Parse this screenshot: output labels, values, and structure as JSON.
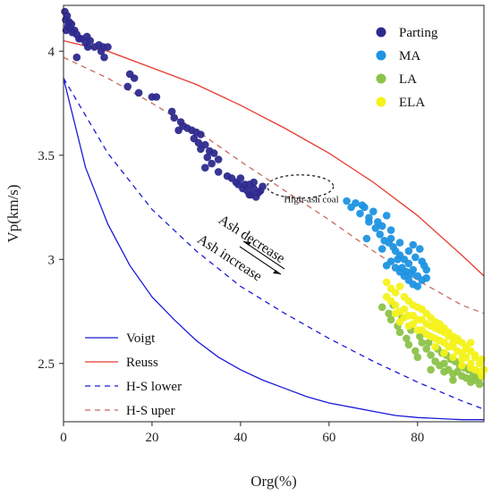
{
  "chart_data": {
    "type": "scatter",
    "title": "",
    "xlabel": "Org(%)",
    "ylabel": "Vp(km/s)",
    "xlim": [
      0,
      95
    ],
    "ylim": [
      2.22,
      4.22
    ],
    "xticks": [
      0,
      20,
      40,
      60,
      80
    ],
    "yticks": [
      2.5,
      3,
      3.5,
      4
    ],
    "ytick_labels": [
      "2.5",
      "3",
      "3.5",
      "4"
    ],
    "grid": false,
    "legend_points_placement": "top-right",
    "legend_lines_placement": "bottom-left",
    "series": [
      {
        "name": "Parting",
        "kind": "points",
        "color": "#2d2a8e",
        "points": [
          [
            0.3,
            4.19
          ],
          [
            0.5,
            4.15
          ],
          [
            0.8,
            4.17
          ],
          [
            1,
            4.12
          ],
          [
            1.3,
            4.14
          ],
          [
            0.6,
            4.1
          ],
          [
            1.5,
            4.11
          ],
          [
            2,
            4.09
          ],
          [
            3,
            4.08
          ],
          [
            3.5,
            4.06
          ],
          [
            4,
            4.06
          ],
          [
            5,
            4.04
          ],
          [
            5.5,
            4.02
          ],
          [
            7,
            4.02
          ],
          [
            8,
            4.03
          ],
          [
            9,
            4.02
          ],
          [
            8.5,
            4.0
          ],
          [
            9.2,
            3.97
          ],
          [
            3,
            3.97
          ],
          [
            5.3,
            4.07
          ],
          [
            6,
            4.05
          ],
          [
            1.8,
            4.13
          ],
          [
            2.5,
            4.1
          ],
          [
            10,
            4.02
          ],
          [
            15,
            3.89
          ],
          [
            16,
            3.87
          ],
          [
            14.5,
            3.83
          ],
          [
            17,
            3.8
          ],
          [
            20,
            3.78
          ],
          [
            21,
            3.78
          ],
          [
            24.5,
            3.71
          ],
          [
            25,
            3.68
          ],
          [
            26.5,
            3.66
          ],
          [
            27,
            3.64
          ],
          [
            28,
            3.63
          ],
          [
            26,
            3.62
          ],
          [
            29,
            3.62
          ],
          [
            30,
            3.61
          ],
          [
            31,
            3.6
          ],
          [
            29.5,
            3.58
          ],
          [
            30.5,
            3.56
          ],
          [
            32,
            3.55
          ],
          [
            31,
            3.53
          ],
          [
            33,
            3.52
          ],
          [
            34,
            3.51
          ],
          [
            32.5,
            3.49
          ],
          [
            35,
            3.48
          ],
          [
            33.5,
            3.46
          ],
          [
            32,
            3.44
          ],
          [
            35,
            3.42
          ],
          [
            37,
            3.4
          ],
          [
            38,
            3.39
          ],
          [
            39,
            3.37
          ],
          [
            40,
            3.39
          ],
          [
            41,
            3.36
          ],
          [
            40.5,
            3.34
          ],
          [
            42,
            3.36
          ],
          [
            43,
            3.34
          ],
          [
            44,
            3.32
          ],
          [
            45,
            3.35
          ],
          [
            43.5,
            3.3
          ],
          [
            42.5,
            3.31
          ],
          [
            41.5,
            3.33
          ],
          [
            39.5,
            3.36
          ],
          [
            44.5,
            3.33
          ],
          [
            43,
            3.37
          ],
          [
            42,
            3.31
          ]
        ]
      },
      {
        "name": "MA",
        "kind": "points",
        "color": "#1d93e2",
        "points": [
          [
            64,
            3.28
          ],
          [
            65,
            3.25
          ],
          [
            66,
            3.27
          ],
          [
            67,
            3.22
          ],
          [
            68,
            3.25
          ],
          [
            69,
            3.2
          ],
          [
            70,
            3.23
          ],
          [
            71,
            3.18
          ],
          [
            72,
            3.16
          ],
          [
            73,
            3.21
          ],
          [
            74,
            3.14
          ],
          [
            71.5,
            3.12
          ],
          [
            72.5,
            3.09
          ],
          [
            73.5,
            3.08
          ],
          [
            74.5,
            3.06
          ],
          [
            75,
            3.04
          ],
          [
            76,
            3.02
          ],
          [
            77,
            3.0
          ],
          [
            78,
            2.98
          ],
          [
            76.5,
            2.96
          ],
          [
            77.5,
            2.94
          ],
          [
            78.5,
            2.93
          ],
          [
            79,
            2.95
          ],
          [
            80,
            2.92
          ],
          [
            81,
            2.9
          ],
          [
            82,
            2.91
          ],
          [
            81.5,
            2.97
          ],
          [
            79.5,
            3.01
          ],
          [
            75.5,
            3.0
          ],
          [
            74,
            2.99
          ],
          [
            73,
            2.97
          ],
          [
            75,
            2.96
          ],
          [
            76,
            2.94
          ],
          [
            77,
            2.92
          ],
          [
            78,
            2.9
          ],
          [
            79,
            2.88
          ],
          [
            80,
            2.87
          ],
          [
            70.5,
            3.15
          ],
          [
            72,
            3.05
          ],
          [
            69,
            3.18
          ],
          [
            67.5,
            3.26
          ],
          [
            68.5,
            3.1
          ],
          [
            80.5,
            3.05
          ],
          [
            79,
            3.07
          ],
          [
            82,
            2.95
          ],
          [
            81,
            2.99
          ],
          [
            74,
            3.1
          ],
          [
            76,
            3.08
          ],
          [
            78,
            3.04
          ]
        ]
      },
      {
        "name": "LA",
        "kind": "points",
        "color": "#8bc34a",
        "points": [
          [
            72,
            2.77
          ],
          [
            73.5,
            2.74
          ],
          [
            74,
            2.71
          ],
          [
            75.5,
            2.68
          ],
          [
            76,
            2.65
          ],
          [
            77.5,
            2.62
          ],
          [
            78,
            2.59
          ],
          [
            79.5,
            2.56
          ],
          [
            80,
            2.53
          ],
          [
            81,
            2.6
          ],
          [
            82,
            2.57
          ],
          [
            83,
            2.54
          ],
          [
            84,
            2.51
          ],
          [
            85,
            2.49
          ],
          [
            86,
            2.5
          ],
          [
            87,
            2.47
          ],
          [
            88,
            2.45
          ],
          [
            89,
            2.46
          ],
          [
            90,
            2.44
          ],
          [
            91,
            2.43
          ],
          [
            92,
            2.41
          ],
          [
            93,
            2.42
          ],
          [
            94,
            2.4
          ],
          [
            85.5,
            2.55
          ],
          [
            87.5,
            2.52
          ],
          [
            89.5,
            2.49
          ],
          [
            91.5,
            2.47
          ],
          [
            93,
            2.45
          ],
          [
            76.5,
            2.72
          ],
          [
            78.5,
            2.66
          ],
          [
            80.5,
            2.63
          ],
          [
            82.5,
            2.6
          ],
          [
            84.5,
            2.57
          ],
          [
            86.5,
            2.54
          ],
          [
            88.5,
            2.51
          ],
          [
            90.5,
            2.48
          ],
          [
            92.5,
            2.44
          ],
          [
            94,
            2.43
          ],
          [
            74.5,
            2.78
          ],
          [
            83,
            2.47
          ],
          [
            86,
            2.46
          ],
          [
            88,
            2.42
          ]
        ]
      },
      {
        "name": "ELA",
        "kind": "points",
        "color": "#f4f21a",
        "points": [
          [
            73,
            2.89
          ],
          [
            74,
            2.86
          ],
          [
            75,
            2.84
          ],
          [
            76,
            2.87
          ],
          [
            77,
            2.82
          ],
          [
            78,
            2.8
          ],
          [
            79,
            2.78
          ],
          [
            80,
            2.77
          ],
          [
            81,
            2.76
          ],
          [
            82,
            2.74
          ],
          [
            83,
            2.72
          ],
          [
            84,
            2.7
          ],
          [
            85,
            2.69
          ],
          [
            86,
            2.67
          ],
          [
            87,
            2.65
          ],
          [
            88,
            2.63
          ],
          [
            89,
            2.62
          ],
          [
            90,
            2.6
          ],
          [
            91,
            2.58
          ],
          [
            92,
            2.56
          ],
          [
            93,
            2.54
          ],
          [
            94,
            2.5
          ],
          [
            95,
            2.47
          ],
          [
            94.5,
            2.44
          ],
          [
            75,
            2.78
          ],
          [
            77,
            2.76
          ],
          [
            79,
            2.73
          ],
          [
            81,
            2.71
          ],
          [
            83,
            2.68
          ],
          [
            85,
            2.66
          ],
          [
            87,
            2.63
          ],
          [
            89,
            2.61
          ],
          [
            91,
            2.57
          ],
          [
            93,
            2.53
          ],
          [
            76,
            2.7
          ],
          [
            78,
            2.68
          ],
          [
            80,
            2.66
          ],
          [
            82,
            2.64
          ],
          [
            84,
            2.62
          ],
          [
            86,
            2.6
          ],
          [
            88,
            2.58
          ],
          [
            90,
            2.55
          ],
          [
            92,
            2.5
          ],
          [
            94,
            2.46
          ],
          [
            74,
            2.8
          ],
          [
            76,
            2.75
          ],
          [
            78,
            2.73
          ],
          [
            80,
            2.71
          ],
          [
            82,
            2.69
          ],
          [
            84,
            2.67
          ],
          [
            86,
            2.65
          ],
          [
            88,
            2.6
          ],
          [
            90,
            2.52
          ],
          [
            92,
            2.48
          ],
          [
            84,
            2.58
          ],
          [
            86,
            2.55
          ],
          [
            88,
            2.53
          ],
          [
            90,
            2.49
          ],
          [
            92,
            2.6
          ],
          [
            89,
            2.56
          ],
          [
            87,
            2.58
          ],
          [
            85,
            2.61
          ],
          [
            83,
            2.63
          ],
          [
            81,
            2.66
          ],
          [
            79,
            2.69
          ],
          [
            77,
            2.72
          ],
          [
            75,
            2.74
          ],
          [
            73,
            2.82
          ],
          [
            91,
            2.53
          ],
          [
            93,
            2.47
          ],
          [
            94.5,
            2.52
          ]
        ]
      },
      {
        "name": "Voigt",
        "kind": "line",
        "color": "#1a1ad8",
        "style": "solid",
        "points": [
          [
            0,
            3.87
          ],
          [
            5,
            3.44
          ],
          [
            10,
            3.17
          ],
          [
            15,
            2.97
          ],
          [
            20,
            2.82
          ],
          [
            25,
            2.71
          ],
          [
            30,
            2.61
          ],
          [
            35,
            2.53
          ],
          [
            40,
            2.47
          ],
          [
            45,
            2.42
          ],
          [
            50,
            2.38
          ],
          [
            55,
            2.34
          ],
          [
            60,
            2.31
          ],
          [
            65,
            2.29
          ],
          [
            70,
            2.27
          ],
          [
            75,
            2.25
          ],
          [
            80,
            2.24
          ],
          [
            85,
            2.235
          ],
          [
            90,
            2.23
          ],
          [
            95,
            2.23
          ]
        ]
      },
      {
        "name": "Reuss",
        "kind": "line",
        "color": "#e83a2f",
        "style": "solid",
        "points": [
          [
            0,
            4.05
          ],
          [
            10,
            4.0
          ],
          [
            20,
            3.92
          ],
          [
            30,
            3.84
          ],
          [
            40,
            3.74
          ],
          [
            50,
            3.63
          ],
          [
            60,
            3.51
          ],
          [
            70,
            3.37
          ],
          [
            80,
            3.21
          ],
          [
            90,
            3.02
          ],
          [
            95,
            2.92
          ]
        ]
      },
      {
        "name": "H-S lower",
        "kind": "line",
        "color": "#1a1ad8",
        "style": "dashed",
        "points": [
          [
            0,
            3.87
          ],
          [
            10,
            3.51
          ],
          [
            20,
            3.24
          ],
          [
            30,
            3.04
          ],
          [
            40,
            2.87
          ],
          [
            50,
            2.74
          ],
          [
            60,
            2.62
          ],
          [
            70,
            2.51
          ],
          [
            80,
            2.41
          ],
          [
            90,
            2.32
          ],
          [
            95,
            2.28
          ]
        ]
      },
      {
        "name": "H-S uper",
        "kind": "line",
        "color": "#c66a5d",
        "style": "dashed",
        "points": [
          [
            0,
            3.97
          ],
          [
            10,
            3.87
          ],
          [
            20,
            3.75
          ],
          [
            30,
            3.62
          ],
          [
            40,
            3.47
          ],
          [
            50,
            3.33
          ],
          [
            60,
            3.19
          ],
          [
            70,
            3.04
          ],
          [
            80,
            2.9
          ],
          [
            90,
            2.78
          ],
          [
            95,
            2.74
          ]
        ]
      }
    ],
    "annotations": [
      {
        "text": "High-ash coal",
        "x": 56,
        "y": 3.29
      },
      {
        "text": "Ash decrease",
        "x": 42,
        "y": 3.08
      },
      {
        "text": "Ash increase",
        "x": 37,
        "y": 2.99
      }
    ]
  }
}
